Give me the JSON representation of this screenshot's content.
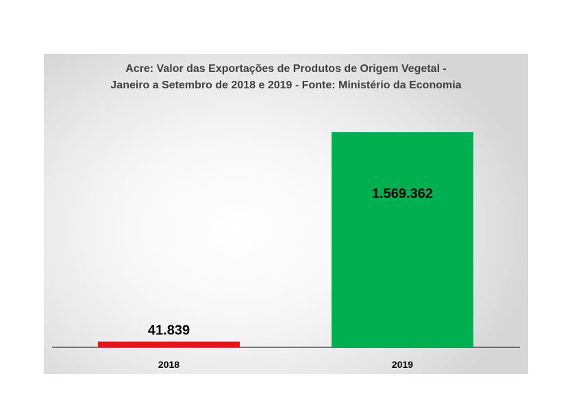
{
  "chart_data": {
    "type": "bar",
    "title_lines": [
      "Acre: Valor das Exportações de Produtos de Origem Vegetal -",
      "Janeiro a Setembro de 2018 e 2019 - Fonte: Ministério da Economia"
    ],
    "categories": [
      "2018",
      "2019"
    ],
    "values": [
      41839,
      1569362
    ],
    "data_labels": [
      "41.839",
      "1.569.362"
    ],
    "colors": [
      "#e8141c",
      "#00b050"
    ],
    "grid": false,
    "legend": "none"
  }
}
